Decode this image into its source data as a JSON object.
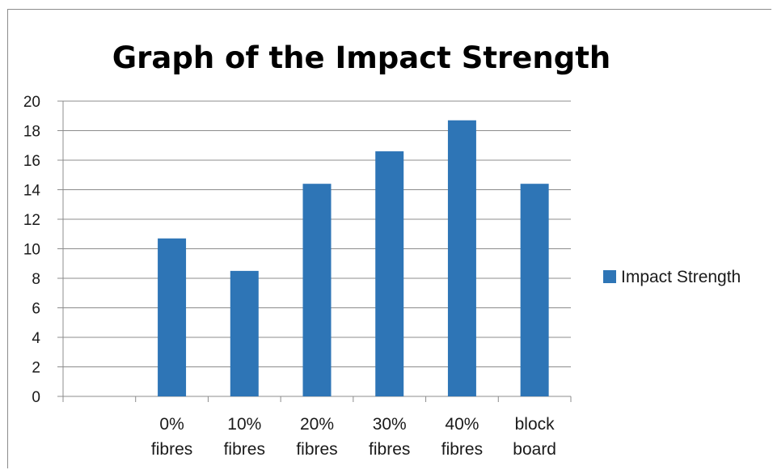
{
  "chart_data": {
    "type": "bar",
    "title": "Graph of the Impact Strength",
    "xlabel": "",
    "ylabel": "",
    "categories": [
      "",
      "0% fibres",
      "10% fibres",
      "20% fibres",
      "30% fibres",
      "40% fibres",
      "block board"
    ],
    "series": [
      {
        "name": "Impact Strength",
        "values": [
          null,
          10.7,
          8.5,
          14.4,
          16.6,
          18.7,
          14.4
        ],
        "color": "#2e75b6"
      }
    ],
    "ylim": [
      0,
      20
    ],
    "yticks": [
      "0",
      "2",
      "4",
      "6",
      "8",
      "10",
      "12",
      "14",
      "16",
      "18",
      "20"
    ],
    "grid": true,
    "legend_position": "right"
  }
}
